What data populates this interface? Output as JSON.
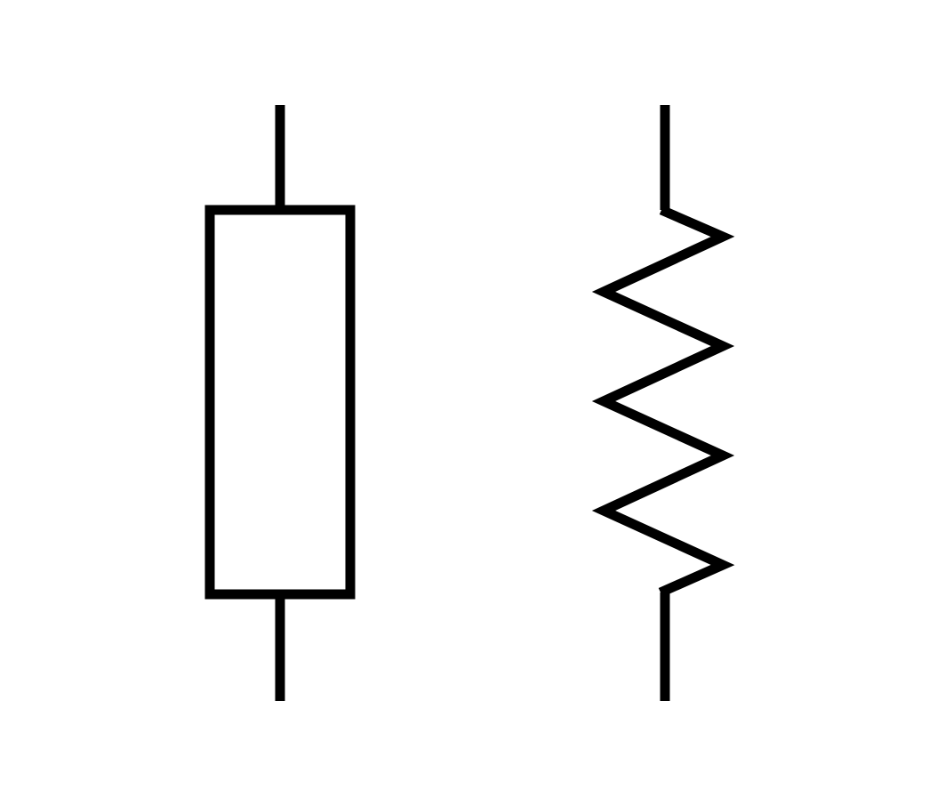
{
  "diagram": {
    "symbols": [
      {
        "style": "rectangle",
        "icon": "resistor-iec-icon"
      },
      {
        "style": "zigzag",
        "icon": "resistor-ansi-icon"
      }
    ],
    "stroke_color": "#000000",
    "background_color": "#ffffff"
  }
}
